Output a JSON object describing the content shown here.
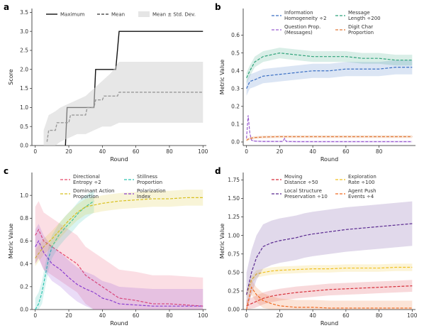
{
  "chart_data": [
    {
      "letter": "a",
      "type": "line",
      "xlabel": "Round",
      "ylabel": "Score",
      "xlim": [
        0,
        100
      ],
      "ylim": [
        0,
        3.5
      ],
      "xticks": [
        "0",
        "20",
        "40",
        "60",
        "80",
        "100"
      ],
      "yticks": [
        "0.0",
        "0.5",
        "1.0",
        "1.5",
        "2.0",
        "2.5",
        "3.0",
        "3.5"
      ],
      "legend_placement": "top",
      "series": [
        {
          "name": "Maximum",
          "color": "#111111",
          "style": "solid",
          "x": [
            18,
            19,
            35,
            36,
            48,
            50,
            100
          ],
          "y": [
            0,
            1.0,
            1.0,
            2.0,
            2.0,
            3.0,
            3.0
          ]
        },
        {
          "name": "Mean",
          "color": "#555555",
          "style": "dashed",
          "x": [
            7,
            8,
            12,
            13,
            20,
            21,
            30,
            31,
            35,
            36,
            40,
            41,
            49,
            50,
            100
          ],
          "y": [
            0.1,
            0.4,
            0.4,
            0.6,
            0.6,
            0.8,
            0.8,
            1.0,
            1.0,
            1.2,
            1.2,
            1.3,
            1.3,
            1.4,
            1.4
          ]
        },
        {
          "name": "Mean ± Std. Dev.",
          "color": "#d3d3d3",
          "style": "band",
          "x": [
            5,
            8,
            12,
            15,
            20,
            25,
            30,
            35,
            40,
            45,
            50,
            100
          ],
          "low": [
            0,
            0,
            0,
            0.1,
            0.2,
            0.3,
            0.3,
            0.4,
            0.5,
            0.5,
            0.6,
            0.6
          ],
          "high": [
            0.4,
            0.8,
            0.9,
            1.0,
            1.1,
            1.2,
            1.3,
            1.5,
            1.7,
            1.9,
            2.2,
            2.2
          ]
        }
      ]
    },
    {
      "letter": "b",
      "type": "line",
      "xlabel": "Round",
      "ylabel": "Metric Value",
      "xlim": [
        0,
        100
      ],
      "ylim": [
        0,
        0.7
      ],
      "xticks": [
        "0",
        "20",
        "40",
        "60",
        "80"
      ],
      "yticks": [
        "0.0",
        "0.1",
        "0.2",
        "0.3",
        "0.4",
        "0.5",
        "0.6"
      ],
      "legend_placement": "top",
      "series": [
        {
          "name": "Information\nHomogeneity ÷2",
          "color": "#3a6fc4",
          "x": [
            0,
            2,
            5,
            10,
            20,
            30,
            40,
            50,
            60,
            70,
            80,
            90,
            100
          ],
          "y": [
            0.3,
            0.34,
            0.35,
            0.37,
            0.38,
            0.39,
            0.4,
            0.4,
            0.41,
            0.41,
            0.41,
            0.42,
            0.42
          ],
          "band": 0.04
        },
        {
          "name": "Message\nLength ÷200",
          "color": "#2fa37a",
          "x": [
            0,
            2,
            5,
            10,
            20,
            30,
            40,
            50,
            60,
            70,
            80,
            90,
            100
          ],
          "y": [
            0.36,
            0.4,
            0.45,
            0.48,
            0.5,
            0.49,
            0.48,
            0.48,
            0.48,
            0.47,
            0.47,
            0.46,
            0.46
          ],
          "band": 0.03
        },
        {
          "name": "Question Prop.\n(Messages)",
          "color": "#9b5fd0",
          "x": [
            0,
            1,
            2,
            3,
            5,
            10,
            22,
            23,
            24,
            30,
            50,
            100
          ],
          "y": [
            0.02,
            0.15,
            0.05,
            0.01,
            0.005,
            0.003,
            0.003,
            0.02,
            0.003,
            0.002,
            0.002,
            0.002
          ],
          "band": 0.005
        },
        {
          "name": "Digit Char\nProportion",
          "color": "#e07a3a",
          "x": [
            0,
            2,
            5,
            10,
            20,
            30,
            40,
            50,
            60,
            70,
            80,
            90,
            100
          ],
          "y": [
            0.01,
            0.02,
            0.025,
            0.028,
            0.03,
            0.03,
            0.03,
            0.03,
            0.03,
            0.03,
            0.03,
            0.03,
            0.03
          ],
          "band": 0.008
        }
      ]
    },
    {
      "letter": "c",
      "type": "line",
      "xlabel": "Round",
      "ylabel": "Metric Value",
      "xlim": [
        0,
        100
      ],
      "ylim": [
        0,
        1.2
      ],
      "xticks": [
        "0",
        "20",
        "40",
        "60",
        "80",
        "100"
      ],
      "yticks": [
        "0.0",
        "0.2",
        "0.4",
        "0.6",
        "0.8",
        "1.0"
      ],
      "legend_placement": "top",
      "series": [
        {
          "name": "Directional\nEntropy ÷2",
          "color": "#e84a6a",
          "x": [
            0,
            2,
            5,
            10,
            15,
            20,
            25,
            30,
            35,
            40,
            45,
            50,
            60,
            70,
            80,
            90,
            100
          ],
          "y": [
            0.65,
            0.7,
            0.6,
            0.55,
            0.5,
            0.45,
            0.4,
            0.3,
            0.25,
            0.2,
            0.15,
            0.1,
            0.08,
            0.05,
            0.05,
            0.04,
            0.03
          ],
          "band": 0.25
        },
        {
          "name": "Stillness\nProportion",
          "color": "#2ec4b0",
          "x": [
            0,
            2,
            4,
            6,
            8,
            10,
            14,
            18,
            22,
            26,
            30,
            35
          ],
          "y": [
            0.0,
            0.05,
            0.15,
            0.3,
            0.45,
            0.55,
            0.65,
            0.72,
            0.78,
            0.85,
            0.9,
            0.95
          ],
          "band": 0.1
        },
        {
          "name": "Dominant Action\nProportion",
          "color": "#d8c020",
          "x": [
            0,
            5,
            10,
            15,
            20,
            25,
            30,
            40,
            50,
            60,
            70,
            80,
            90,
            100
          ],
          "y": [
            0.45,
            0.55,
            0.62,
            0.7,
            0.78,
            0.85,
            0.9,
            0.93,
            0.95,
            0.96,
            0.97,
            0.97,
            0.98,
            0.98
          ],
          "band": 0.07
        },
        {
          "name": "Polarization\nIndex",
          "color": "#8a3ed0",
          "x": [
            0,
            2,
            5,
            10,
            15,
            20,
            25,
            30,
            35,
            40,
            45,
            50,
            60,
            70,
            80,
            90,
            100
          ],
          "y": [
            0.55,
            0.6,
            0.5,
            0.4,
            0.35,
            0.28,
            0.22,
            0.18,
            0.15,
            0.1,
            0.08,
            0.05,
            0.04,
            0.03,
            0.03,
            0.03,
            0.03
          ],
          "band": 0.15
        }
      ]
    },
    {
      "letter": "d",
      "type": "line",
      "xlabel": "Round",
      "ylabel": "Metric Value",
      "xlim": [
        0,
        100
      ],
      "ylim": [
        0,
        1.75
      ],
      "xticks": [
        "0",
        "20",
        "40",
        "60",
        "80",
        "100"
      ],
      "yticks": [
        "0.00",
        "0.25",
        "0.50",
        "0.75",
        "1.00",
        "1.25",
        "1.50",
        "1.75"
      ],
      "legend_placement": "top",
      "series": [
        {
          "name": "Moving\nDistance ÷50",
          "color": "#d62f3a",
          "x": [
            0,
            5,
            10,
            15,
            20,
            30,
            40,
            50,
            60,
            70,
            80,
            90,
            100
          ],
          "y": [
            0.05,
            0.1,
            0.15,
            0.18,
            0.2,
            0.23,
            0.25,
            0.27,
            0.28,
            0.29,
            0.3,
            0.31,
            0.32
          ],
          "band": 0.08
        },
        {
          "name": "Exploration\nRate ÷100",
          "color": "#f0c020",
          "x": [
            0,
            3,
            6,
            10,
            15,
            20,
            30,
            40,
            50,
            60,
            70,
            80,
            90,
            100
          ],
          "y": [
            0.2,
            0.4,
            0.48,
            0.5,
            0.52,
            0.53,
            0.54,
            0.55,
            0.55,
            0.56,
            0.56,
            0.56,
            0.57,
            0.57
          ],
          "band": 0.05
        },
        {
          "name": "Local Structure\nPreservation ÷10",
          "color": "#5a2a90",
          "x": [
            0,
            3,
            6,
            10,
            15,
            20,
            25,
            30,
            35,
            40,
            50,
            60,
            70,
            80,
            90,
            100
          ],
          "y": [
            0.2,
            0.5,
            0.7,
            0.85,
            0.9,
            0.93,
            0.95,
            0.97,
            1.0,
            1.02,
            1.05,
            1.08,
            1.1,
            1.12,
            1.14,
            1.16
          ],
          "band": 0.3
        },
        {
          "name": "Agent Push\nEvents ÷4",
          "color": "#f06a20",
          "x": [
            0,
            3,
            6,
            10,
            15,
            20,
            25,
            30,
            40,
            50,
            60,
            70,
            80,
            90,
            100
          ],
          "y": [
            0.0,
            0.3,
            0.2,
            0.12,
            0.08,
            0.05,
            0.04,
            0.03,
            0.03,
            0.02,
            0.02,
            0.02,
            0.02,
            0.02,
            0.02
          ],
          "band": 0.1
        }
      ]
    }
  ]
}
